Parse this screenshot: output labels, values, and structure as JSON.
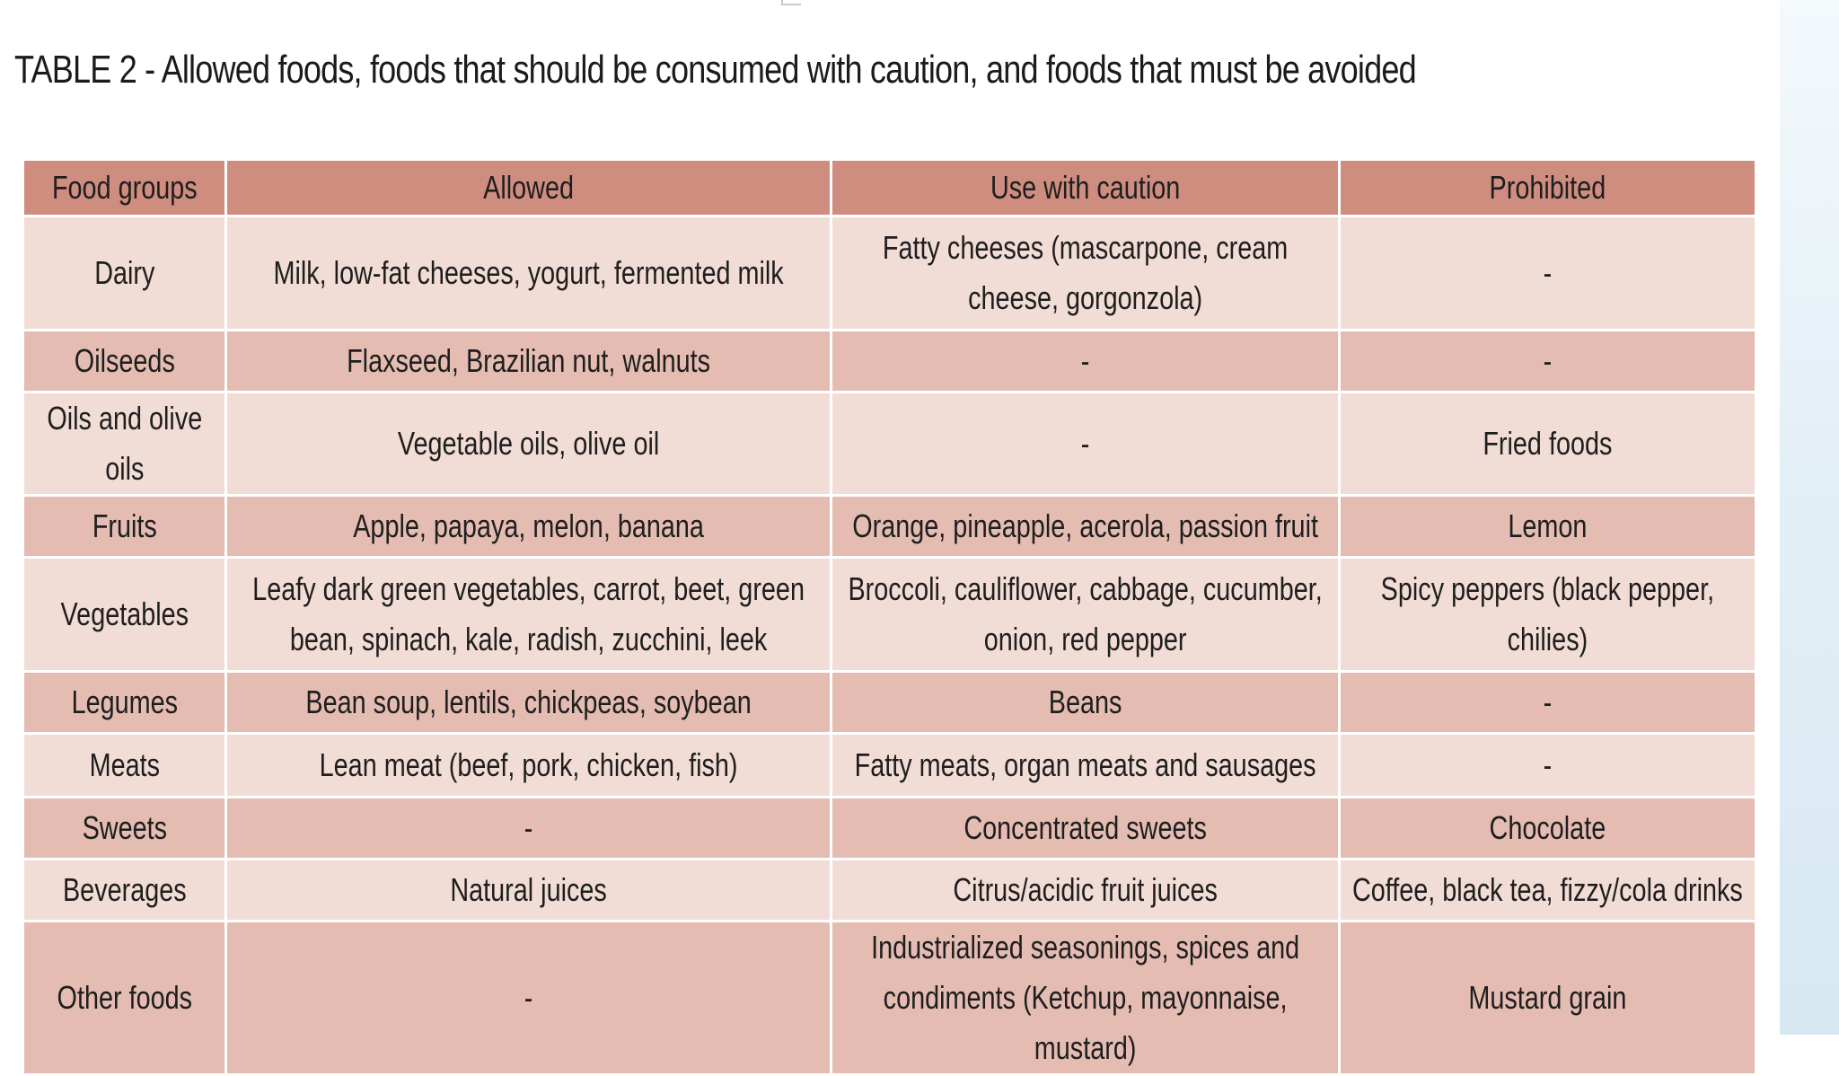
{
  "title": "TABLE 2 - Allowed foods, foods that should be consumed with caution, and foods that must be avoided",
  "table": {
    "headers": [
      "Food groups",
      "Allowed",
      "Use with caution",
      "Prohibited"
    ],
    "rows": [
      [
        "Dairy",
        "Milk, low-fat cheeses, yogurt, fermented milk",
        "Fatty cheeses (mascarpone, cream cheese, gorgonzola)",
        "-"
      ],
      [
        "Oilseeds",
        "Flaxseed, Brazilian nut, walnuts",
        "-",
        "-"
      ],
      [
        "Oils and olive oils",
        "Vegetable oils, olive oil",
        "-",
        "Fried foods"
      ],
      [
        "Fruits",
        "Apple, papaya, melon, banana",
        "Orange, pineapple, acerola, passion fruit",
        "Lemon"
      ],
      [
        "Vegetables",
        "Leafy dark green vegetables, carrot, beet, green bean, spinach, kale, radish, zucchini, leek",
        "Broccoli, cauliflower, cabbage, cucumber, onion, red pepper",
        "Spicy peppers (black pepper, chilies)"
      ],
      [
        "Legumes",
        "Bean soup, lentils, chickpeas, soybean",
        "Beans",
        "-"
      ],
      [
        "Meats",
        "Lean meat (beef, pork, chicken, fish)",
        "Fatty meats, organ meats and sausages",
        "-"
      ],
      [
        "Sweets",
        "-",
        "Concentrated sweets",
        "Chocolate"
      ],
      [
        "Beverages",
        "Natural juices",
        "Citrus/acidic fruit juices",
        "Coffee, black tea, fizzy/cola drinks"
      ],
      [
        "Other foods",
        "-",
        "Industrialized seasonings, spices and condiments (Ketchup, mayonnaise, mustard)",
        "Mustard grain"
      ]
    ]
  },
  "colors": {
    "header_bg": "#cf8d80",
    "row_light": "#f2dcd6",
    "row_dark": "#e5bcb2",
    "side_panel": "#dceaf3"
  }
}
